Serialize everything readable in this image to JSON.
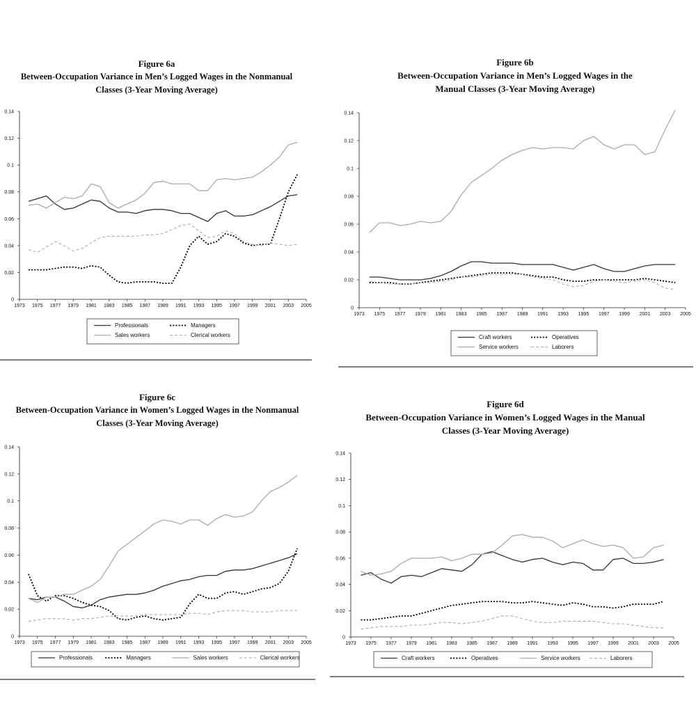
{
  "charts": [
    {
      "chart_data": {
        "type": "line",
        "figure_label": "Figure 6a",
        "title_line1": "Between-Occupation Variance in Men’s Logged Wages in the Nonmanual",
        "title_line2": "Classes (3-Year Moving Average)",
        "x": [
          1974,
          1975,
          1976,
          1977,
          1978,
          1979,
          1980,
          1981,
          1982,
          1983,
          1984,
          1985,
          1986,
          1987,
          1988,
          1989,
          1990,
          1991,
          1992,
          1993,
          1994,
          1995,
          1996,
          1997,
          1998,
          1999,
          2000,
          2001,
          2002,
          2003,
          2004
        ],
        "xticks": [
          "1973",
          "1975",
          "1977",
          "1979",
          "1981",
          "1983",
          "1985",
          "1987",
          "1989",
          "1991",
          "1993",
          "1995",
          "1997",
          "1999",
          "2001",
          "2003",
          "2005"
        ],
        "xlim": [
          1973,
          2005
        ],
        "ylim": [
          0,
          0.14
        ],
        "yticks": [
          "0",
          "0.02",
          "0.04",
          "0.06",
          "0.08",
          "0.1",
          "0.12",
          "0.14"
        ],
        "series": [
          {
            "name": "Professionals",
            "color": "#333333",
            "dash": "solid",
            "values": [
              0.073,
              0.075,
              0.077,
              0.071,
              0.067,
              0.068,
              0.071,
              0.074,
              0.073,
              0.068,
              0.065,
              0.065,
              0.064,
              0.066,
              0.067,
              0.067,
              0.066,
              0.064,
              0.064,
              0.061,
              0.058,
              0.064,
              0.066,
              0.062,
              0.062,
              0.063,
              0.066,
              0.069,
              0.073,
              0.077,
              0.078
            ]
          },
          {
            "name": "Managers",
            "color": "#000000",
            "dash": "dots",
            "values": [
              0.022,
              0.022,
              0.022,
              0.023,
              0.024,
              0.024,
              0.023,
              0.025,
              0.024,
              0.018,
              0.013,
              0.012,
              0.013,
              0.013,
              0.013,
              0.012,
              0.012,
              0.024,
              0.04,
              0.047,
              0.041,
              0.043,
              0.049,
              0.047,
              0.042,
              0.04,
              0.041,
              0.041,
              0.06,
              0.08,
              0.093
            ]
          },
          {
            "name": "Sales workers",
            "color": "#aaaaaa",
            "dash": "solid",
            "values": [
              0.07,
              0.071,
              0.068,
              0.072,
              0.076,
              0.075,
              0.077,
              0.086,
              0.084,
              0.072,
              0.068,
              0.071,
              0.074,
              0.079,
              0.087,
              0.088,
              0.086,
              0.086,
              0.086,
              0.081,
              0.081,
              0.089,
              0.09,
              0.089,
              0.09,
              0.091,
              0.095,
              0.1,
              0.106,
              0.115,
              0.117
            ]
          },
          {
            "name": "Clerical workers",
            "color": "#aaaaaa",
            "dash": "dash",
            "values": [
              0.037,
              0.035,
              0.039,
              0.043,
              0.04,
              0.036,
              0.038,
              0.042,
              0.046,
              0.047,
              0.047,
              0.047,
              0.047,
              0.048,
              0.048,
              0.049,
              0.052,
              0.055,
              0.056,
              0.051,
              0.046,
              0.047,
              0.051,
              0.049,
              0.043,
              0.041,
              0.04,
              0.042,
              0.041,
              0.04,
              0.041
            ]
          }
        ],
        "legend": "bottom"
      }
    },
    {
      "chart_data": {
        "type": "line",
        "figure_label": "Figure 6b",
        "title_line1": "Between-Occupation Variance in Men’s Logged Wages in the",
        "title_line2": "Manual Classes (3-Year Moving Average)",
        "x": [
          1974,
          1975,
          1976,
          1977,
          1978,
          1979,
          1980,
          1981,
          1982,
          1983,
          1984,
          1985,
          1986,
          1987,
          1988,
          1989,
          1990,
          1991,
          1992,
          1993,
          1994,
          1995,
          1996,
          1997,
          1998,
          1999,
          2000,
          2001,
          2002,
          2003,
          2004
        ],
        "xticks": [
          "1973",
          "1975",
          "1977",
          "1979",
          "1981",
          "1983",
          "1985",
          "1987",
          "1989",
          "1991",
          "1993",
          "1995",
          "1997",
          "1999",
          "2001",
          "2003",
          "2005"
        ],
        "xlim": [
          1973,
          2005
        ],
        "ylim": [
          0,
          0.14
        ],
        "yticks": [
          "0",
          "0.02",
          "0.04",
          "0.06",
          "0.08",
          "0.1",
          "0.12",
          "0.14"
        ],
        "series": [
          {
            "name": "Craft workers",
            "color": "#333333",
            "dash": "solid",
            "values": [
              0.022,
              0.022,
              0.021,
              0.02,
              0.02,
              0.02,
              0.021,
              0.023,
              0.026,
              0.03,
              0.033,
              0.033,
              0.032,
              0.032,
              0.032,
              0.031,
              0.031,
              0.031,
              0.031,
              0.029,
              0.027,
              0.029,
              0.031,
              0.028,
              0.026,
              0.026,
              0.028,
              0.03,
              0.031,
              0.031,
              0.031
            ]
          },
          {
            "name": "Operatives",
            "color": "#000000",
            "dash": "dots",
            "values": [
              0.018,
              0.018,
              0.018,
              0.017,
              0.017,
              0.018,
              0.019,
              0.02,
              0.021,
              0.022,
              0.023,
              0.024,
              0.025,
              0.025,
              0.025,
              0.024,
              0.023,
              0.022,
              0.022,
              0.02,
              0.019,
              0.019,
              0.02,
              0.02,
              0.02,
              0.02,
              0.02,
              0.021,
              0.02,
              0.019,
              0.018
            ]
          },
          {
            "name": "Service workers",
            "color": "#aaaaaa",
            "dash": "solid",
            "values": [
              0.054,
              0.061,
              0.061,
              0.059,
              0.06,
              0.062,
              0.061,
              0.062,
              0.069,
              0.081,
              0.09,
              0.095,
              0.1,
              0.106,
              0.11,
              0.113,
              0.115,
              0.114,
              0.115,
              0.115,
              0.114,
              0.12,
              0.123,
              0.117,
              0.114,
              0.117,
              0.117,
              0.11,
              0.112,
              0.128,
              0.142
            ]
          },
          {
            "name": "Laborers",
            "color": "#aaaaaa",
            "dash": "dash",
            "values": [
              0.019,
              0.018,
              0.017,
              0.017,
              0.017,
              0.018,
              0.018,
              0.019,
              0.02,
              0.022,
              0.022,
              0.023,
              0.024,
              0.024,
              0.024,
              0.024,
              0.022,
              0.021,
              0.02,
              0.017,
              0.015,
              0.016,
              0.019,
              0.02,
              0.019,
              0.018,
              0.019,
              0.02,
              0.018,
              0.014,
              0.013
            ]
          }
        ],
        "legend": "bottom"
      }
    },
    {
      "chart_data": {
        "type": "line",
        "figure_label": "Figure 6c",
        "title_line1": "Between-Occupation Variance in Women’s Logged Wages in the Nonmanual",
        "title_line2": "Classes (3-Year Moving Average)",
        "x": [
          1974,
          1975,
          1976,
          1977,
          1978,
          1979,
          1980,
          1981,
          1982,
          1983,
          1984,
          1985,
          1986,
          1987,
          1988,
          1989,
          1990,
          1991,
          1992,
          1993,
          1994,
          1995,
          1996,
          1997,
          1998,
          1999,
          2000,
          2001,
          2002,
          2003,
          2004
        ],
        "xticks": [
          "1973",
          "1975",
          "1977",
          "1979",
          "1981",
          "1983",
          "1985",
          "1987",
          "1989",
          "1991",
          "1993",
          "1995",
          "1997",
          "1999",
          "2001",
          "2003",
          "2005"
        ],
        "xlim": [
          1973,
          2005
        ],
        "ylim": [
          0,
          0.14
        ],
        "yticks": [
          "0",
          "0.02",
          "0.04",
          "0.06",
          "0.08",
          "0.1",
          "0.12",
          "0.14"
        ],
        "series": [
          {
            "name": "Professionals",
            "color": "#333333",
            "dash": "solid",
            "values": [
              0.028,
              0.027,
              0.029,
              0.029,
              0.026,
              0.022,
              0.021,
              0.023,
              0.027,
              0.029,
              0.03,
              0.031,
              0.031,
              0.032,
              0.034,
              0.037,
              0.039,
              0.041,
              0.042,
              0.044,
              0.045,
              0.045,
              0.048,
              0.049,
              0.049,
              0.05,
              0.052,
              0.054,
              0.056,
              0.058,
              0.061
            ]
          },
          {
            "name": "Managers",
            "color": "#000000",
            "dash": "dots",
            "values": [
              0.046,
              0.03,
              0.026,
              0.03,
              0.03,
              0.028,
              0.025,
              0.023,
              0.022,
              0.019,
              0.013,
              0.012,
              0.014,
              0.015,
              0.013,
              0.012,
              0.013,
              0.014,
              0.024,
              0.031,
              0.028,
              0.028,
              0.032,
              0.033,
              0.031,
              0.033,
              0.035,
              0.036,
              0.039,
              0.048,
              0.065
            ]
          },
          {
            "name": "Sales workers",
            "color": "#aaaaaa",
            "dash": "solid",
            "values": [
              0.028,
              0.025,
              0.029,
              0.029,
              0.031,
              0.031,
              0.034,
              0.037,
              0.042,
              0.052,
              0.063,
              0.068,
              0.073,
              0.078,
              0.083,
              0.086,
              0.085,
              0.083,
              0.086,
              0.086,
              0.082,
              0.087,
              0.09,
              0.088,
              0.089,
              0.092,
              0.1,
              0.107,
              0.11,
              0.114,
              0.119
            ]
          },
          {
            "name": "Clerical workers",
            "color": "#aaaaaa",
            "dash": "dash",
            "values": [
              0.011,
              0.012,
              0.013,
              0.013,
              0.013,
              0.012,
              0.013,
              0.013,
              0.014,
              0.015,
              0.015,
              0.015,
              0.015,
              0.016,
              0.016,
              0.016,
              0.016,
              0.016,
              0.017,
              0.017,
              0.016,
              0.018,
              0.019,
              0.019,
              0.019,
              0.018,
              0.018,
              0.018,
              0.019,
              0.019,
              0.019
            ]
          }
        ],
        "legend": "bottom"
      }
    },
    {
      "chart_data": {
        "type": "line",
        "figure_label": "Figure 6d",
        "title_line1": "Between-Occupation Variance in Women’s Logged Wages in the Manual",
        "title_line2": "Classes (3-Year Moving Average)",
        "x": [
          1974,
          1975,
          1976,
          1977,
          1978,
          1979,
          1980,
          1981,
          1982,
          1983,
          1984,
          1985,
          1986,
          1987,
          1988,
          1989,
          1990,
          1991,
          1992,
          1993,
          1994,
          1995,
          1996,
          1997,
          1998,
          1999,
          2000,
          2001,
          2002,
          2003,
          2004
        ],
        "xticks": [
          "1973",
          "1975",
          "1977",
          "1979",
          "1981",
          "1983",
          "1985",
          "1987",
          "1989",
          "1991",
          "1993",
          "1995",
          "1997",
          "1999",
          "2001",
          "2003",
          "2005"
        ],
        "xlim": [
          1973,
          2005
        ],
        "ylim": [
          0,
          0.14
        ],
        "yticks": [
          "0",
          "0.02",
          "0.04",
          "0.06",
          "0.08",
          "0.1",
          "0.12",
          "0.14"
        ],
        "series": [
          {
            "name": "Craft workers",
            "color": "#333333",
            "dash": "solid",
            "values": [
              0.047,
              0.049,
              0.044,
              0.041,
              0.046,
              0.047,
              0.046,
              0.049,
              0.052,
              0.051,
              0.05,
              0.055,
              0.063,
              0.065,
              0.062,
              0.059,
              0.057,
              0.059,
              0.06,
              0.057,
              0.055,
              0.057,
              0.056,
              0.051,
              0.051,
              0.059,
              0.06,
              0.056,
              0.056,
              0.057,
              0.059
            ]
          },
          {
            "name": "Operatives",
            "color": "#000000",
            "dash": "dots",
            "values": [
              0.013,
              0.013,
              0.014,
              0.015,
              0.016,
              0.016,
              0.018,
              0.02,
              0.022,
              0.024,
              0.025,
              0.026,
              0.027,
              0.027,
              0.027,
              0.026,
              0.026,
              0.027,
              0.026,
              0.025,
              0.024,
              0.026,
              0.025,
              0.023,
              0.023,
              0.022,
              0.023,
              0.025,
              0.025,
              0.025,
              0.027
            ]
          },
          {
            "name": "Service workers",
            "color": "#aaaaaa",
            "dash": "solid",
            "values": [
              0.05,
              0.047,
              0.048,
              0.05,
              0.056,
              0.06,
              0.06,
              0.06,
              0.061,
              0.058,
              0.06,
              0.063,
              0.063,
              0.064,
              0.07,
              0.077,
              0.078,
              0.076,
              0.076,
              0.073,
              0.068,
              0.071,
              0.074,
              0.071,
              0.069,
              0.07,
              0.068,
              0.06,
              0.061,
              0.068,
              0.07
            ]
          },
          {
            "name": "Laborers",
            "color": "#aaaaaa",
            "dash": "dash",
            "values": [
              0.006,
              0.007,
              0.008,
              0.008,
              0.008,
              0.009,
              0.009,
              0.01,
              0.011,
              0.011,
              0.01,
              0.011,
              0.012,
              0.014,
              0.016,
              0.016,
              0.014,
              0.012,
              0.011,
              0.011,
              0.012,
              0.012,
              0.012,
              0.012,
              0.011,
              0.01,
              0.01,
              0.009,
              0.008,
              0.007,
              0.007
            ]
          }
        ],
        "legend": "bottom"
      }
    }
  ]
}
